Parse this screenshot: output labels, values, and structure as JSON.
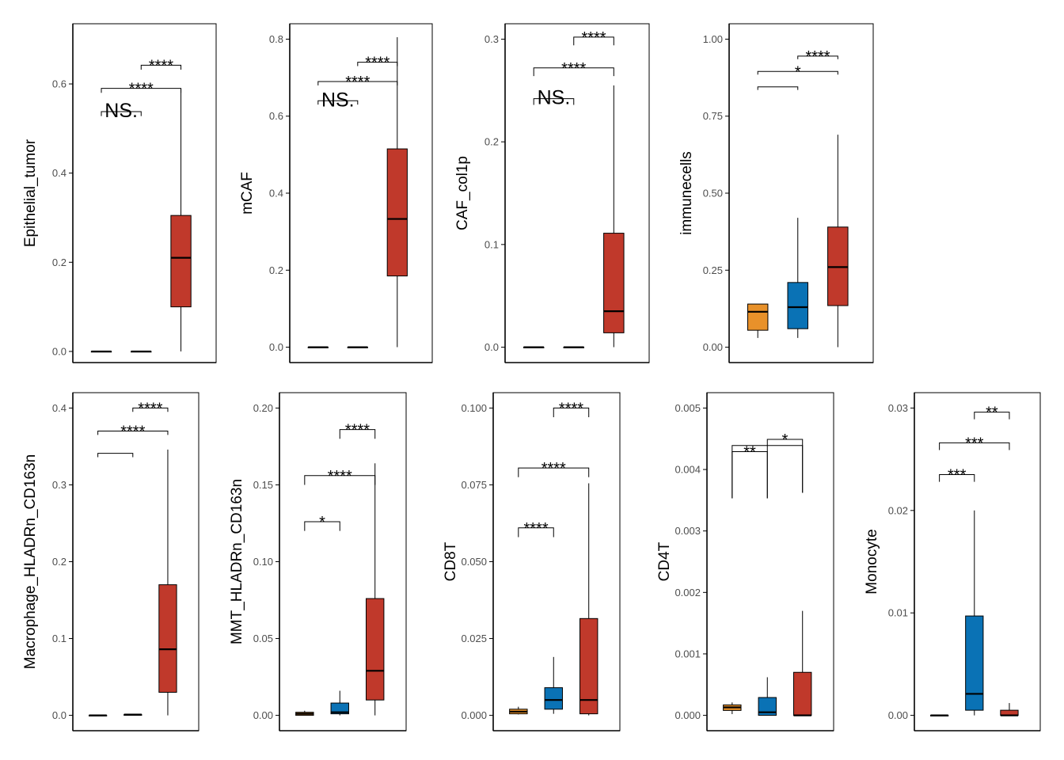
{
  "colors": {
    "group1": "#E8912A",
    "group2": "#0A72B5",
    "group3": "#C0392B",
    "axis": "#000000",
    "tick_text": "#4d4d4d"
  },
  "chart_data": [
    {
      "type": "box",
      "ylabel": "Epithelial_tumor",
      "ylim": [
        -0.025,
        0.735
      ],
      "yticks": [
        0,
        0.2,
        0.4,
        0.6
      ],
      "ytick_labels": [
        "0.0",
        "0.2",
        "0.4",
        "0.6"
      ],
      "groups": [
        {
          "q1": 0,
          "median": 0,
          "q3": 0,
          "whisker_low": 0,
          "whisker_high": 0
        },
        {
          "q1": 0,
          "median": 0,
          "q3": 0,
          "whisker_low": 0,
          "whisker_high": 0
        },
        {
          "q1": 0.1,
          "median": 0.21,
          "q3": 0.305,
          "whisker_low": 0,
          "whisker_high": 0.59
        }
      ],
      "comparisons": [
        {
          "from": 1,
          "to": 2,
          "y": 0.538,
          "tip_from": 0.528,
          "tip_to": 0.528,
          "label": "NS.",
          "label_y": 0.538
        },
        {
          "from": 1,
          "to": 3,
          "y": 0.59,
          "tip_from": 0.58,
          "tip_to": 0.58,
          "label": "****",
          "label_y": 0.59
        },
        {
          "from": 2,
          "to": 3,
          "y": 0.642,
          "tip_from": 0.632,
          "tip_to": 0.632,
          "label": "****",
          "label_y": 0.642
        }
      ]
    },
    {
      "type": "box",
      "ylabel": "mCAF",
      "ylim": [
        -0.04,
        0.84
      ],
      "yticks": [
        0,
        0.2,
        0.4,
        0.6,
        0.8
      ],
      "ytick_labels": [
        "0.0",
        "0.2",
        "0.4",
        "0.6",
        "0.8"
      ],
      "groups": [
        {
          "q1": 0,
          "median": 0,
          "q3": 0,
          "whisker_low": 0,
          "whisker_high": 0
        },
        {
          "q1": 0,
          "median": 0,
          "q3": 0,
          "whisker_low": 0,
          "whisker_high": 0
        },
        {
          "q1": 0.185,
          "median": 0.333,
          "q3": 0.515,
          "whisker_low": 0,
          "whisker_high": 0.805
        }
      ],
      "comparisons": [
        {
          "from": 1,
          "to": 2,
          "y": 0.64,
          "tip_from": 0.63,
          "tip_to": 0.63,
          "label": "NS.",
          "label_y": 0.64
        },
        {
          "from": 1,
          "to": 3,
          "y": 0.69,
          "tip_from": 0.68,
          "tip_to": 0.68,
          "label": "****",
          "label_y": 0.69
        },
        {
          "from": 2,
          "to": 3,
          "y": 0.74,
          "tip_from": 0.73,
          "tip_to": 0.73,
          "label": "****",
          "label_y": 0.74
        }
      ]
    },
    {
      "type": "box",
      "ylabel": "CAF_col1p",
      "ylim": [
        -0.015,
        0.315
      ],
      "yticks": [
        0,
        0.1,
        0.2,
        0.3
      ],
      "ytick_labels": [
        "0.0",
        "0.1",
        "0.2",
        "0.3"
      ],
      "groups": [
        {
          "q1": 0,
          "median": 0,
          "q3": 0,
          "whisker_low": 0,
          "whisker_high": 0
        },
        {
          "q1": 0,
          "median": 0,
          "q3": 0,
          "whisker_low": 0,
          "whisker_high": 0
        },
        {
          "q1": 0.014,
          "median": 0.035,
          "q3": 0.111,
          "whisker_low": 0,
          "whisker_high": 0.255
        }
      ],
      "comparisons": [
        {
          "from": 1,
          "to": 2,
          "y": 0.242,
          "tip_from": 0.236,
          "tip_to": 0.236,
          "label": "NS.",
          "label_y": 0.242
        },
        {
          "from": 1,
          "to": 3,
          "y": 0.272,
          "tip_from": 0.264,
          "tip_to": 0.264,
          "label": "****",
          "label_y": 0.272
        },
        {
          "from": 2,
          "to": 3,
          "y": 0.302,
          "tip_from": 0.294,
          "tip_to": 0.294,
          "label": "****",
          "label_y": 0.302
        }
      ]
    },
    {
      "type": "box",
      "ylabel": "immunecells",
      "ylim": [
        -0.05,
        1.05
      ],
      "yticks": [
        0,
        0.25,
        0.5,
        0.75,
        1.0
      ],
      "ytick_labels": [
        "0.00",
        "0.25",
        "0.50",
        "0.75",
        "1.00"
      ],
      "groups": [
        {
          "q1": 0.055,
          "median": 0.115,
          "q3": 0.14,
          "whisker_low": 0.03,
          "whisker_high": 0.14
        },
        {
          "q1": 0.06,
          "median": 0.13,
          "q3": 0.21,
          "whisker_low": 0.03,
          "whisker_high": 0.42
        },
        {
          "q1": 0.135,
          "median": 0.26,
          "q3": 0.39,
          "whisker_low": 0,
          "whisker_high": 0.69
        }
      ],
      "comparisons": [
        {
          "from": 1,
          "to": 2,
          "y": 0.845,
          "tip_from": 0.835,
          "tip_to": 0.835,
          "label": "",
          "label_y": 0.845
        },
        {
          "from": 1,
          "to": 3,
          "y": 0.895,
          "tip_from": 0.885,
          "tip_to": 0.885,
          "label": "*",
          "label_y": 0.895
        },
        {
          "from": 2,
          "to": 3,
          "y": 0.945,
          "tip_from": 0.935,
          "tip_to": 0.935,
          "label": "****",
          "label_y": 0.945
        }
      ]
    },
    {
      "type": "box",
      "ylabel": "Macrophage_HLADRn_CD163n",
      "ylim": [
        -0.02,
        0.42
      ],
      "yticks": [
        0,
        0.1,
        0.2,
        0.3,
        0.4
      ],
      "ytick_labels": [
        "0.0",
        "0.1",
        "0.2",
        "0.3",
        "0.4"
      ],
      "groups": [
        {
          "q1": 0,
          "median": 0,
          "q3": 0,
          "whisker_low": 0,
          "whisker_high": 0
        },
        {
          "q1": 0,
          "median": 0.001,
          "q3": 0.001,
          "whisker_low": 0,
          "whisker_high": 0.001
        },
        {
          "q1": 0.03,
          "median": 0.086,
          "q3": 0.17,
          "whisker_low": 0,
          "whisker_high": 0.346
        }
      ],
      "comparisons": [
        {
          "from": 1,
          "to": 2,
          "y": 0.341,
          "tip_from": 0.336,
          "tip_to": 0.336,
          "label": "",
          "label_y": 0.341
        },
        {
          "from": 1,
          "to": 3,
          "y": 0.37,
          "tip_from": 0.365,
          "tip_to": 0.365,
          "label": "****",
          "label_y": 0.37
        },
        {
          "from": 2,
          "to": 3,
          "y": 0.4,
          "tip_from": 0.395,
          "tip_to": 0.395,
          "label": "****",
          "label_y": 0.4
        }
      ]
    },
    {
      "type": "box",
      "ylabel": "MMT_HLADRn_CD163n",
      "ylim": [
        -0.01,
        0.21
      ],
      "yticks": [
        0,
        0.05,
        0.1,
        0.15,
        0.2
      ],
      "ytick_labels": [
        "0.00",
        "0.05",
        "0.10",
        "0.15",
        "0.20"
      ],
      "groups": [
        {
          "q1": 0,
          "median": 0.001,
          "q3": 0.002,
          "whisker_low": 0,
          "whisker_high": 0.003
        },
        {
          "q1": 0.001,
          "median": 0.002,
          "q3": 0.008,
          "whisker_low": 0,
          "whisker_high": 0.016
        },
        {
          "q1": 0.01,
          "median": 0.029,
          "q3": 0.076,
          "whisker_low": 0,
          "whisker_high": 0.164
        }
      ],
      "comparisons": [
        {
          "from": 1,
          "to": 2,
          "y": 0.126,
          "tip_from": 0.12,
          "tip_to": 0.12,
          "label": "*",
          "label_y": 0.126
        },
        {
          "from": 1,
          "to": 3,
          "y": 0.156,
          "tip_from": 0.15,
          "tip_to": 0.15,
          "label": "****",
          "label_y": 0.156
        },
        {
          "from": 2,
          "to": 3,
          "y": 0.186,
          "tip_from": 0.18,
          "tip_to": 0.18,
          "label": "****",
          "label_y": 0.186
        }
      ]
    },
    {
      "type": "box",
      "ylabel": "CD8T",
      "ylim": [
        -0.005,
        0.105
      ],
      "yticks": [
        0,
        0.025,
        0.05,
        0.075,
        0.1
      ],
      "ytick_labels": [
        "0.000",
        "0.025",
        "0.050",
        "0.075",
        "0.100"
      ],
      "groups": [
        {
          "q1": 0.0005,
          "median": 0.0012,
          "q3": 0.002,
          "whisker_low": 0.0003,
          "whisker_high": 0.0028
        },
        {
          "q1": 0.002,
          "median": 0.005,
          "q3": 0.009,
          "whisker_low": 0.0005,
          "whisker_high": 0.019
        },
        {
          "q1": 0.0005,
          "median": 0.005,
          "q3": 0.0315,
          "whisker_low": 0,
          "whisker_high": 0.0755
        }
      ],
      "comparisons": [
        {
          "from": 1,
          "to": 2,
          "y": 0.061,
          "tip_from": 0.058,
          "tip_to": 0.058,
          "label": "****",
          "label_y": 0.061
        },
        {
          "from": 1,
          "to": 3,
          "y": 0.0805,
          "tip_from": 0.0775,
          "tip_to": 0.0775,
          "label": "****",
          "label_y": 0.0805
        },
        {
          "from": 2,
          "to": 3,
          "y": 0.1,
          "tip_from": 0.097,
          "tip_to": 0.097,
          "label": "****",
          "label_y": 0.1
        }
      ]
    },
    {
      "type": "box",
      "ylabel": "CD4T",
      "ylim": [
        -0.00025,
        0.00525
      ],
      "yticks": [
        0,
        0.001,
        0.002,
        0.003,
        0.004,
        0.005
      ],
      "ytick_labels": [
        "0.000",
        "0.001",
        "0.002",
        "0.003",
        "0.004",
        "0.005"
      ],
      "groups": [
        {
          "q1": 8e-05,
          "median": 0.00013,
          "q3": 0.00017,
          "whisker_low": 2e-05,
          "whisker_high": 0.00021
        },
        {
          "q1": 0,
          "median": 5e-05,
          "q3": 0.00029,
          "whisker_low": 0,
          "whisker_high": 0.00062
        },
        {
          "q1": 0,
          "median": 0,
          "q3": 0.0007,
          "whisker_low": 0,
          "whisker_high": 0.0017
        }
      ],
      "comparisons": [
        {
          "from": 1,
          "to": 2,
          "y": 0.00429,
          "tip_from": 0.00353,
          "tip_to": 0.00353,
          "label": "**",
          "label_y": 0.00429
        },
        {
          "from": 1,
          "to": 3,
          "y": 0.00439,
          "tip_from": 0.00353,
          "tip_to": 0.00362,
          "label": "",
          "label_y": 0.00439
        },
        {
          "from": 2,
          "to": 3,
          "y": 0.00449,
          "tip_from": 0.00353,
          "tip_to": 0.00362,
          "label": "*",
          "label_y": 0.00449
        }
      ]
    },
    {
      "type": "box",
      "ylabel": "Monocyte",
      "ylim": [
        -0.0015,
        0.0315
      ],
      "yticks": [
        0,
        0.01,
        0.02,
        0.03
      ],
      "ytick_labels": [
        "0.00",
        "0.01",
        "0.02",
        "0.03"
      ],
      "groups": [
        {
          "q1": 0,
          "median": 0,
          "q3": 0,
          "whisker_low": 0,
          "whisker_high": 0
        },
        {
          "q1": 0.0005,
          "median": 0.0021,
          "q3": 0.0097,
          "whisker_low": 0,
          "whisker_high": 0.02
        },
        {
          "q1": 0,
          "median": 0,
          "q3": 0.0005,
          "whisker_low": 0,
          "whisker_high": 0.0012
        }
      ],
      "comparisons": [
        {
          "from": 1,
          "to": 2,
          "y": 0.0235,
          "tip_from": 0.0228,
          "tip_to": 0.0228,
          "label": "***",
          "label_y": 0.0235
        },
        {
          "from": 1,
          "to": 3,
          "y": 0.0266,
          "tip_from": 0.0259,
          "tip_to": 0.0259,
          "label": "***",
          "label_y": 0.0266
        },
        {
          "from": 2,
          "to": 3,
          "y": 0.0296,
          "tip_from": 0.0289,
          "tip_to": 0.0289,
          "label": "**",
          "label_y": 0.0296
        }
      ]
    }
  ]
}
